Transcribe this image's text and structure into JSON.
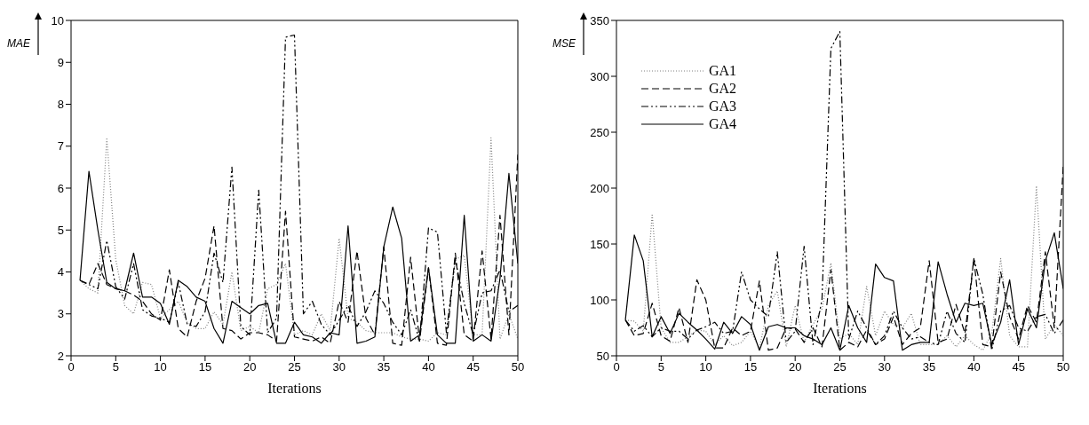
{
  "chart_data": [
    {
      "type": "line",
      "xlabel": "Iterations",
      "ylabel": "MAE",
      "xlim": [
        0,
        50
      ],
      "xticks": [
        0,
        5,
        10,
        15,
        20,
        25,
        30,
        35,
        40,
        45,
        50
      ],
      "ylim": [
        2,
        10
      ],
      "yticks": [
        2,
        3,
        4,
        5,
        6,
        7,
        8,
        9,
        10
      ],
      "grid": false,
      "marker": "none",
      "x": [
        1,
        2,
        3,
        4,
        5,
        6,
        7,
        8,
        9,
        10,
        11,
        12,
        13,
        14,
        15,
        16,
        17,
        18,
        19,
        20,
        21,
        22,
        23,
        24,
        25,
        26,
        27,
        28,
        29,
        30,
        31,
        32,
        33,
        34,
        35,
        36,
        37,
        38,
        39,
        40,
        41,
        42,
        43,
        44,
        45,
        46,
        47,
        48,
        49,
        50
      ],
      "series": [
        {
          "color": "#808080",
          "line_style": "dotted",
          "values": [
            3.8,
            3.6,
            3.5,
            7.2,
            4.3,
            3.2,
            3.0,
            3.75,
            3.7,
            2.9,
            3.1,
            3.3,
            2.8,
            2.65,
            2.65,
            3.05,
            2.75,
            4.0,
            2.6,
            2.7,
            2.55,
            3.6,
            3.7,
            4.2,
            2.5,
            2.6,
            2.5,
            3.0,
            2.6,
            4.8,
            2.9,
            2.8,
            2.6,
            2.55,
            2.55,
            2.55,
            2.45,
            2.4,
            2.4,
            2.35,
            2.55,
            2.5,
            4.3,
            4.4,
            2.5,
            2.5,
            7.2,
            2.4,
            3.0,
            2.4
          ]
        },
        {
          "color": "#000000",
          "line_style": "dashed",
          "values": [
            3.8,
            3.7,
            4.2,
            3.7,
            3.6,
            3.55,
            3.45,
            3.3,
            3.0,
            2.85,
            4.05,
            2.65,
            2.45,
            3.3,
            3.85,
            5.1,
            2.65,
            2.6,
            2.4,
            2.55,
            2.55,
            2.5,
            2.35,
            5.45,
            2.45,
            2.4,
            2.35,
            2.45,
            2.3,
            3.3,
            2.8,
            4.5,
            2.9,
            2.5,
            4.6,
            2.3,
            2.25,
            4.35,
            2.35,
            4.1,
            2.3,
            2.25,
            4.45,
            2.5,
            2.35,
            4.5,
            2.4,
            5.35,
            2.5,
            6.8
          ]
        },
        {
          "color": "#000000",
          "line_style": "dashdot",
          "values": [
            3.8,
            3.7,
            3.6,
            4.75,
            3.65,
            3.35,
            4.2,
            3.1,
            2.95,
            2.9,
            2.8,
            3.75,
            2.75,
            2.7,
            3.05,
            4.45,
            3.75,
            6.5,
            2.7,
            2.5,
            5.95,
            2.55,
            2.9,
            9.6,
            9.65,
            3.0,
            3.3,
            2.75,
            2.5,
            2.85,
            3.2,
            2.7,
            3.05,
            3.55,
            3.25,
            2.8,
            2.5,
            3.1,
            2.35,
            5.05,
            4.95,
            2.55,
            4.3,
            3.25,
            2.5,
            3.5,
            3.55,
            4.05,
            3.05,
            3.2
          ]
        },
        {
          "color": "#000000",
          "line_style": "solid",
          "values": [
            3.8,
            6.4,
            5.0,
            3.75,
            3.6,
            3.55,
            4.45,
            3.4,
            3.4,
            3.25,
            2.75,
            3.8,
            3.65,
            3.4,
            3.3,
            2.65,
            2.3,
            3.3,
            3.15,
            3.0,
            3.2,
            3.25,
            2.3,
            2.3,
            2.8,
            2.5,
            2.45,
            2.3,
            2.55,
            2.5,
            5.1,
            2.3,
            2.35,
            2.45,
            4.6,
            5.55,
            4.8,
            2.35,
            2.5,
            4.1,
            2.5,
            2.3,
            2.3,
            5.35,
            2.35,
            2.5,
            2.35,
            3.85,
            6.35,
            4.2
          ]
        }
      ]
    },
    {
      "type": "line",
      "xlabel": "Iterations",
      "ylabel": "MSE",
      "xlim": [
        0,
        50
      ],
      "xticks": [
        0,
        5,
        10,
        15,
        20,
        25,
        30,
        35,
        40,
        45,
        50
      ],
      "ylim": [
        50,
        350
      ],
      "yticks": [
        50,
        100,
        150,
        200,
        250,
        300,
        350
      ],
      "grid": false,
      "legend": "top left",
      "marker": "none",
      "x": [
        1,
        2,
        3,
        4,
        5,
        6,
        7,
        8,
        9,
        10,
        11,
        12,
        13,
        14,
        15,
        16,
        17,
        18,
        19,
        20,
        21,
        22,
        23,
        24,
        25,
        26,
        27,
        28,
        29,
        30,
        31,
        32,
        33,
        34,
        35,
        36,
        37,
        38,
        39,
        40,
        41,
        42,
        43,
        44,
        45,
        46,
        47,
        48,
        49,
        50
      ],
      "series": [
        {
          "name": "GA1",
          "color": "#808080",
          "line_style": "dotted",
          "values": [
            82,
            81,
            72,
            177,
            75,
            62,
            62,
            67,
            73,
            72,
            60,
            68,
            59,
            62,
            72,
            57,
            95,
            108,
            58,
            95,
            62,
            78,
            92,
            133,
            65,
            70,
            60,
            112,
            68,
            90,
            78,
            75,
            88,
            60,
            60,
            60,
            68,
            58,
            68,
            60,
            55,
            70,
            137,
            68,
            58,
            58,
            202,
            65,
            78,
            68
          ]
        },
        {
          "name": "GA2",
          "color": "#000000",
          "line_style": "dashed",
          "values": [
            82,
            68,
            70,
            97,
            68,
            63,
            93,
            62,
            118,
            100,
            57,
            57,
            75,
            68,
            72,
            117,
            55,
            57,
            75,
            74,
            62,
            75,
            58,
            127,
            55,
            62,
            58,
            73,
            60,
            65,
            85,
            60,
            70,
            75,
            135,
            62,
            65,
            96,
            70,
            137,
            60,
            58,
            125,
            85,
            65,
            95,
            80,
            143,
            75,
            220
          ]
        },
        {
          "name": "GA3",
          "color": "#000000",
          "line_style": "dashdot",
          "values": [
            82,
            72,
            77,
            67,
            75,
            72,
            72,
            65,
            73,
            76,
            80,
            70,
            72,
            125,
            100,
            92,
            85,
            143,
            62,
            72,
            148,
            60,
            100,
            325,
            340,
            65,
            90,
            75,
            60,
            68,
            90,
            75,
            65,
            67,
            62,
            60,
            90,
            70,
            62,
            137,
            105,
            55,
            90,
            95,
            75,
            72,
            85,
            87,
            70,
            82
          ]
        },
        {
          "name": "GA4",
          "color": "#000000",
          "line_style": "solid",
          "values": [
            82,
            158,
            135,
            67,
            85,
            70,
            88,
            80,
            73,
            65,
            56,
            80,
            70,
            85,
            78,
            55,
            76,
            78,
            75,
            75,
            68,
            65,
            60,
            75,
            55,
            95,
            75,
            62,
            132,
            120,
            117,
            55,
            60,
            62,
            62,
            134,
            105,
            80,
            97,
            95,
            97,
            60,
            80,
            118,
            60,
            92,
            75,
            135,
            160,
            110
          ]
        }
      ]
    }
  ]
}
